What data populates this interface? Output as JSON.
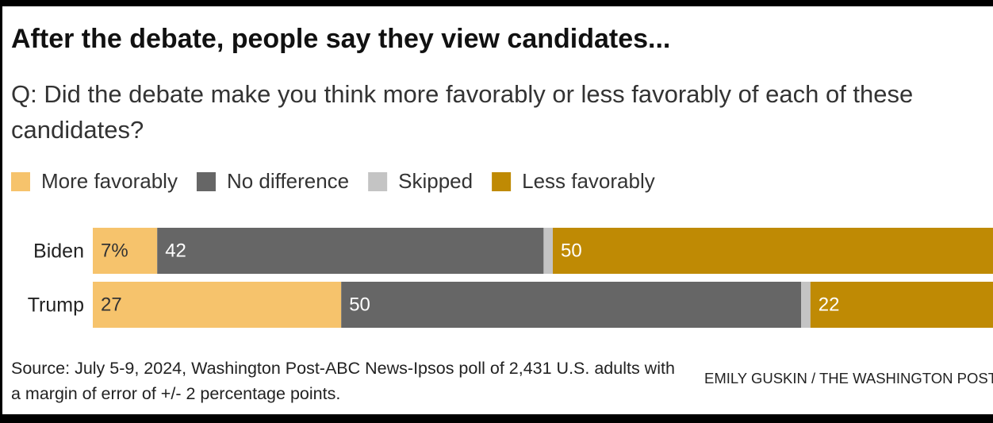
{
  "chart_data": {
    "type": "stacked-bar-horizontal",
    "title": "After the debate, people say they view candidates...",
    "subtitle": "Q: Did the debate make you think more favorably or less favorably of each of these candidates?",
    "categories": [
      "Biden",
      "Trump"
    ],
    "series": [
      {
        "name": "More favorably",
        "color": "#f6c36c",
        "values": [
          7,
          27
        ],
        "value_labels": [
          "7%",
          "27"
        ]
      },
      {
        "name": "No difference",
        "color": "#666666",
        "values": [
          42,
          50
        ]
      },
      {
        "name": "Skipped",
        "color": "#c4c4c4",
        "values": [
          1,
          1
        ]
      },
      {
        "name": "Less favorably",
        "color": "#bf8a04",
        "values": [
          50,
          22
        ]
      }
    ],
    "xlim": [
      0,
      100
    ],
    "source": "Source: July 5-9, 2024, Washington Post-ABC News-Ipsos poll of 2,431 U.S. adults with a margin of error of +/- 2 percentage points.",
    "credit": "EMILY GUSKIN / THE WASHINGTON POST"
  }
}
